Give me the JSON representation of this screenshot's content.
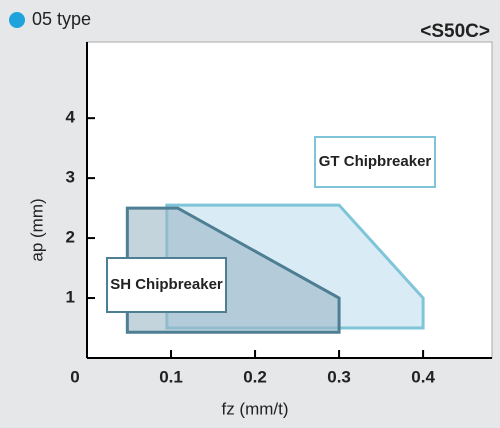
{
  "chart_data": {
    "type": "area-polygon",
    "title": "05 type",
    "material": "<S50C>",
    "xlabel": "fz (mm/t)",
    "ylabel": "ap (mm)",
    "xlim": [
      0,
      0.482
    ],
    "ylim": [
      0,
      5.27
    ],
    "xticks": [
      0,
      0.1,
      0.2,
      0.3,
      0.4
    ],
    "yticks": [
      1,
      2,
      3,
      4
    ],
    "series": [
      {
        "name": "GT Chipbreaker",
        "color": "#7fc4d8",
        "fill": "#d9ecf5",
        "x": [
          0.095,
          0.095,
          0.3,
          0.4,
          0.4
        ],
        "y": [
          0.5,
          2.55,
          2.55,
          1.0,
          0.5
        ]
      },
      {
        "name": "SH Chipbreaker",
        "color": "#4e7e93",
        "fill": "#9bb7c7",
        "x": [
          0.048,
          0.048,
          0.108,
          0.3,
          0.3
        ],
        "y": [
          0.43,
          2.5,
          2.5,
          1.0,
          0.43
        ]
      }
    ]
  }
}
